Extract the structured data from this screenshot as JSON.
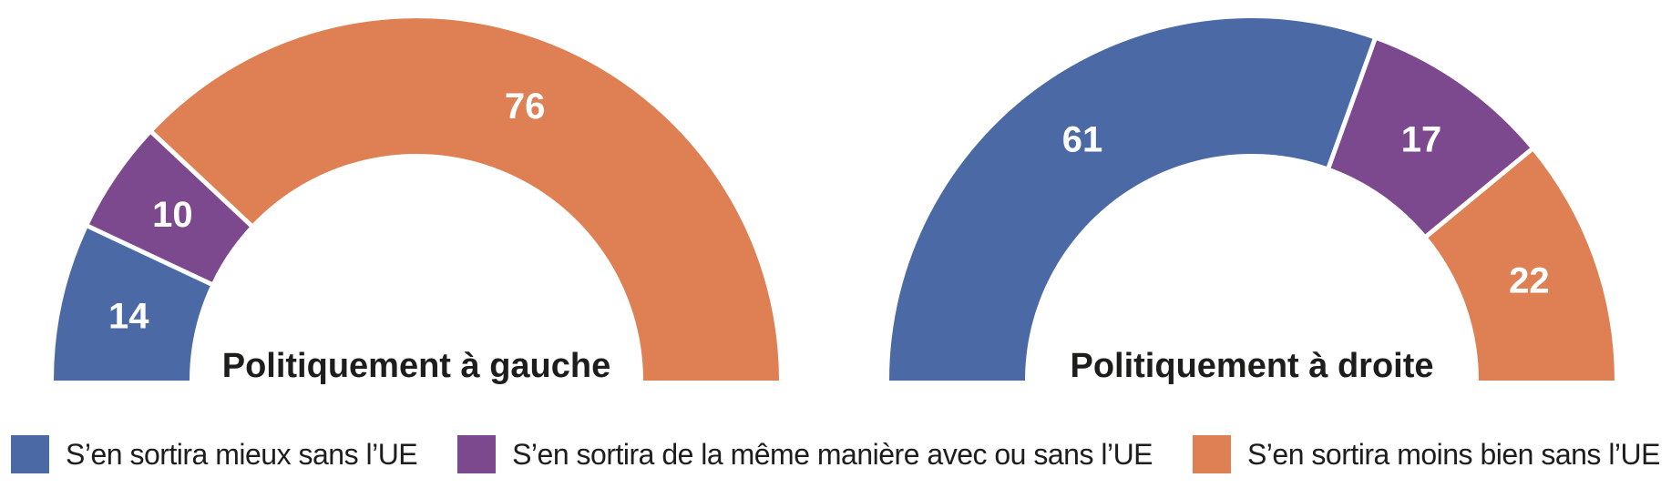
{
  "chart_data": [
    {
      "type": "pie",
      "variant": "half-donut",
      "title": "Politiquement à gauche",
      "categories": [
        "S’en sortira mieux sans l’UE",
        "S’en sortira de la même manière avec ou sans l’UE",
        "S’en sortira moins bien sans l’UE"
      ],
      "values": [
        14,
        10,
        76
      ],
      "colors": [
        "#4a69a5",
        "#7c498e",
        "#de8053"
      ],
      "value_label_color": "#ffffff",
      "start_angle_deg": 180,
      "end_angle_deg": 0,
      "legend_position": "bottom"
    },
    {
      "type": "pie",
      "variant": "half-donut",
      "title": "Politiquement à droite",
      "categories": [
        "S’en sortira mieux sans l’UE",
        "S’en sortira de la même manière avec ou sans l’UE",
        "S’en sortira moins bien sans l’UE"
      ],
      "values": [
        61,
        17,
        22
      ],
      "colors": [
        "#4a69a5",
        "#7c498e",
        "#de8053"
      ],
      "value_label_color": "#ffffff",
      "start_angle_deg": 180,
      "end_angle_deg": 0,
      "legend_position": "bottom"
    }
  ],
  "legend": {
    "items": [
      {
        "label": "S’en sortira mieux sans l’UE",
        "color": "#4a69a5"
      },
      {
        "label": "S’en sortira de la même manière avec ou sans l’UE",
        "color": "#7c498e"
      },
      {
        "label": "S’en sortira moins bien sans l’UE",
        "color": "#de8053"
      }
    ]
  },
  "style": {
    "text_color": "#1d1d1b",
    "background": "#ffffff",
    "divider_color": "#ffffff"
  }
}
